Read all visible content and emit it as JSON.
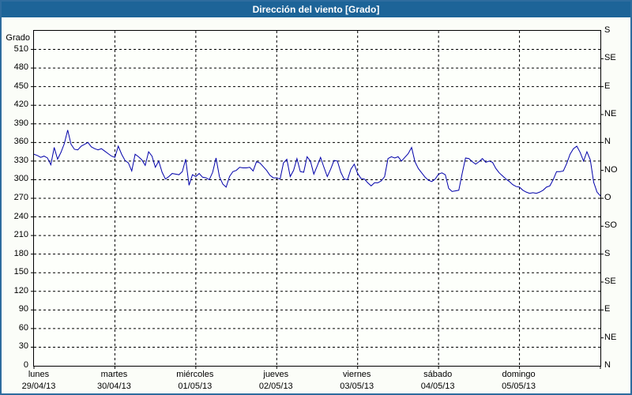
{
  "window": {
    "title": "Dirección del viento [Grado]"
  },
  "chart_data": {
    "type": "line",
    "title": "Dirección del viento [Grado]",
    "grid": {
      "horizontal_dashed": true,
      "vertical_dashed": true
    },
    "y_axis_left": {
      "label": "Grado",
      "min": 0,
      "max": 540,
      "tick_step": 30
    },
    "y_axis_right": {
      "tick_step": 45,
      "labels": [
        "N",
        "NE",
        "E",
        "SE",
        "S",
        "SO",
        "O",
        "NO",
        "N",
        "NE",
        "E",
        "SE",
        "S"
      ]
    },
    "x_axis": {
      "days": [
        {
          "name": "lunes",
          "date": "29/04/13"
        },
        {
          "name": "martes",
          "date": "30/04/13"
        },
        {
          "name": "miércoles",
          "date": "01/05/13"
        },
        {
          "name": "jueves",
          "date": "02/05/13"
        },
        {
          "name": "viernes",
          "date": "03/05/13"
        },
        {
          "name": "sábado",
          "date": "04/05/13"
        },
        {
          "name": "domingo",
          "date": "05/05/13"
        }
      ]
    },
    "series": [
      {
        "name": "Dirección del viento",
        "unit": "grado",
        "color": "#0000AA",
        "samples_per_day": 24,
        "values": [
          341,
          339,
          336,
          338,
          335,
          324,
          352,
          333,
          344,
          358,
          380,
          357,
          349,
          348,
          354,
          357,
          360,
          353,
          350,
          348,
          350,
          346,
          342,
          338,
          336,
          354,
          341,
          331,
          327,
          314,
          341,
          337,
          332,
          323,
          345,
          338,
          320,
          330,
          312,
          301,
          305,
          310,
          309,
          308,
          313,
          333,
          291,
          308,
          305,
          310,
          304,
          303,
          300,
          312,
          335,
          305,
          293,
          288,
          305,
          313,
          315,
          320,
          319,
          319,
          320,
          314,
          329,
          327,
          321,
          315,
          307,
          303,
          303,
          301,
          327,
          333,
          305,
          315,
          334,
          313,
          312,
          337,
          330,
          309,
          322,
          336,
          320,
          305,
          317,
          331,
          330,
          312,
          301,
          300,
          317,
          325,
          310,
          302,
          301,
          295,
          290,
          295,
          295,
          298,
          305,
          334,
          337,
          335,
          337,
          330,
          336,
          342,
          352,
          329,
          318,
          311,
          304,
          299,
          297,
          301,
          309,
          311,
          308,
          286,
          281,
          282,
          283,
          310,
          335,
          334,
          329,
          325,
          329,
          334,
          328,
          330,
          328,
          318,
          311,
          306,
          301,
          297,
          292,
          289,
          288,
          283,
          280,
          278,
          279,
          278,
          280,
          283,
          288,
          290,
          300,
          313,
          313,
          314,
          326,
          341,
          350,
          354,
          344,
          330,
          345,
          332,
          296,
          280,
          274
        ]
      }
    ]
  }
}
